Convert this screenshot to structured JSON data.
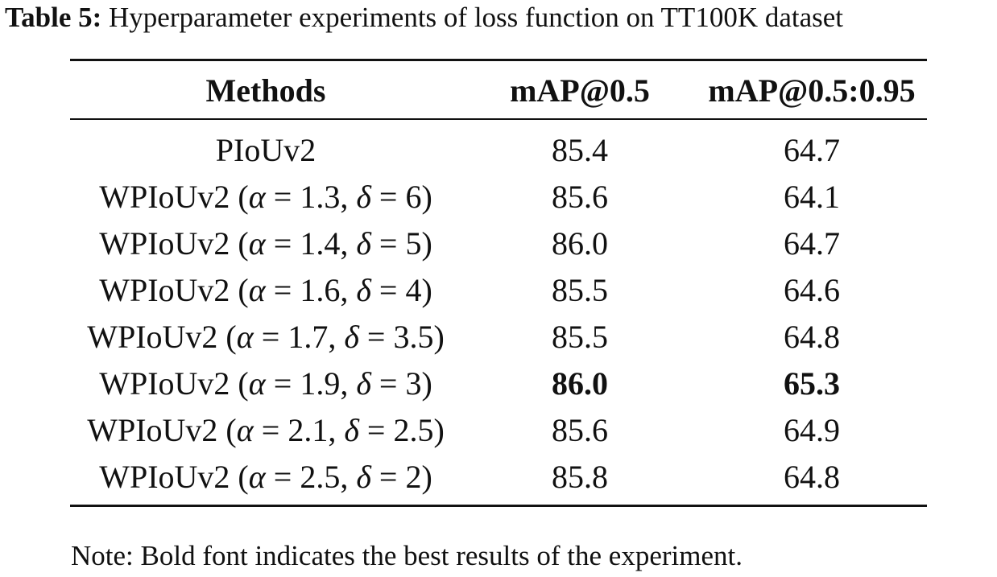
{
  "caption": {
    "label": "Table 5:",
    "text": "Hyperparameter experiments of loss function on TT100K dataset"
  },
  "table": {
    "headers": {
      "method": "Methods",
      "map50": "mAP@0.5",
      "map5095": "mAP@0.5:0.95"
    },
    "rows": [
      {
        "method": "PIoUv2",
        "map50": "85.4",
        "map5095": "64.7",
        "best_map50": false,
        "best_map5095": false
      },
      {
        "method": "WPIoUv2 (α = 1.3, δ = 6)",
        "map50": "85.6",
        "map5095": "64.1",
        "best_map50": false,
        "best_map5095": false
      },
      {
        "method": "WPIoUv2 (α = 1.4, δ = 5)",
        "map50": "86.0",
        "map5095": "64.7",
        "best_map50": false,
        "best_map5095": false
      },
      {
        "method": "WPIoUv2 (α = 1.6, δ = 4)",
        "map50": "85.5",
        "map5095": "64.6",
        "best_map50": false,
        "best_map5095": false
      },
      {
        "method": "WPIoUv2 (α = 1.7, δ = 3.5)",
        "map50": "85.5",
        "map5095": "64.8",
        "best_map50": false,
        "best_map5095": false
      },
      {
        "method": "WPIoUv2 (α = 1.9, δ = 3)",
        "map50": "86.0",
        "map5095": "65.3",
        "best_map50": true,
        "best_map5095": true
      },
      {
        "method": "WPIoUv2 (α = 2.1, δ = 2.5)",
        "map50": "85.6",
        "map5095": "64.9",
        "best_map50": false,
        "best_map5095": false
      },
      {
        "method": "WPIoUv2 (α = 2.5, δ = 2)",
        "map50": "85.8",
        "map5095": "64.8",
        "best_map50": false,
        "best_map5095": false
      }
    ]
  },
  "note": "Note: Bold font indicates the best results of the experiment."
}
